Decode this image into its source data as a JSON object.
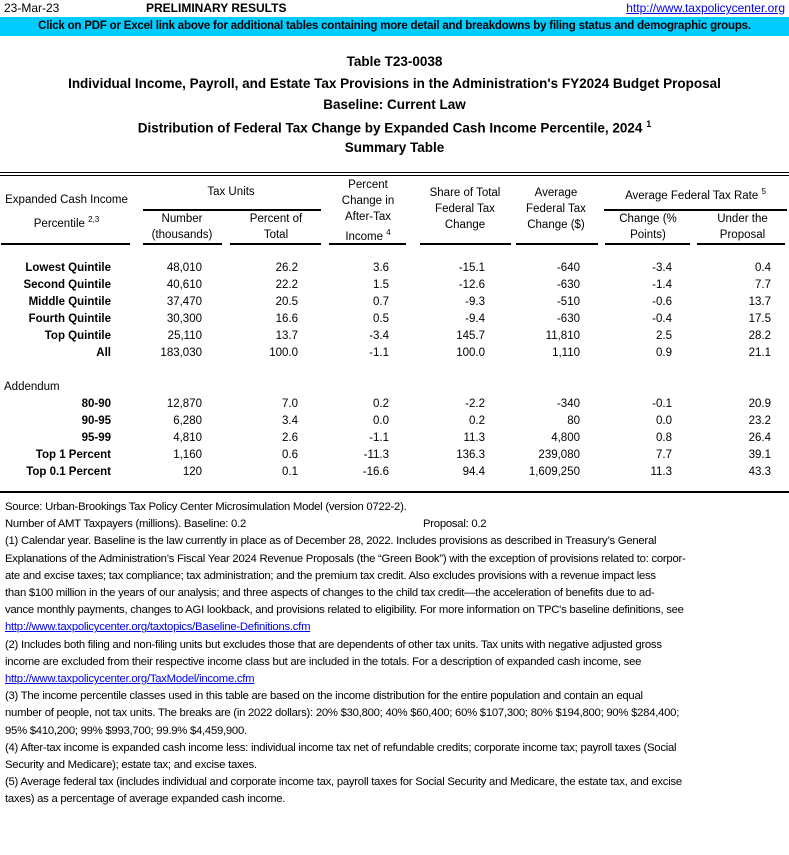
{
  "header": {
    "date": "23-Mar-23",
    "status": "PRELIMINARY RESULTS",
    "site_link": "http://www.taxpolicycenter.org",
    "banner": "Click on PDF or Excel link above for additional tables containing more detail and breakdowns by filing status and demographic groups.",
    "banner_color": "#00ccff"
  },
  "titles": {
    "table_id": "Table T23-0038",
    "line1": "Individual Income, Payroll, and Estate Tax Provisions in the Administration's FY2024 Budget Proposal",
    "line2": "Baseline: Current Law",
    "line3": "Distribution of Federal Tax Change by Expanded Cash Income Percentile, 2024",
    "line3_note": "1",
    "line4": "Summary Table"
  },
  "columns": {
    "percentile_a": "Expanded Cash Income",
    "percentile_b": "Percentile",
    "percentile_note": "2,3",
    "tax_units": "Tax Units",
    "number_a": "Number",
    "number_b": "(thousands)",
    "pct_total_a": "Percent of",
    "pct_total_b": "Total",
    "pct_change_a": "Percent",
    "pct_change_b": "Change in",
    "pct_change_c": "After-Tax",
    "pct_change_d": "Income",
    "pct_change_note": "4",
    "share_a": "Share of Total",
    "share_b": "Federal Tax",
    "share_c": "Change",
    "avg_a": "Average",
    "avg_b": "Federal Tax",
    "avg_c": "Change ($)",
    "rate": "Average Federal Tax Rate",
    "rate_note": "5",
    "rate_change_a": "Change (%",
    "rate_change_b": "Points)",
    "rate_under_a": "Under the",
    "rate_under_b": "Proposal"
  },
  "rows": [
    {
      "label": "Lowest Quintile",
      "values": [
        "48,010",
        "26.2",
        "3.6",
        "-15.1",
        "-640",
        "-3.4",
        "0.4"
      ]
    },
    {
      "label": "Second Quintile",
      "values": [
        "40,610",
        "22.2",
        "1.5",
        "-12.6",
        "-630",
        "-1.4",
        "7.7"
      ]
    },
    {
      "label": "Middle Quintile",
      "values": [
        "37,470",
        "20.5",
        "0.7",
        "-9.3",
        "-510",
        "-0.6",
        "13.7"
      ]
    },
    {
      "label": "Fourth Quintile",
      "values": [
        "30,300",
        "16.6",
        "0.5",
        "-9.4",
        "-630",
        "-0.4",
        "17.5"
      ]
    },
    {
      "label": "Top Quintile",
      "values": [
        "25,110",
        "13.7",
        "-3.4",
        "145.7",
        "11,810",
        "2.5",
        "28.2"
      ]
    },
    {
      "label": "All",
      "values": [
        "183,030",
        "100.0",
        "-1.1",
        "100.0",
        "1,110",
        "0.9",
        "21.1"
      ]
    }
  ],
  "addendum_label": "Addendum",
  "addendum_rows": [
    {
      "label": "80-90",
      "values": [
        "12,870",
        "7.0",
        "0.2",
        "-2.2",
        "-340",
        "-0.1",
        "20.9"
      ]
    },
    {
      "label": "90-95",
      "values": [
        "6,280",
        "3.4",
        "0.0",
        "0.2",
        "80",
        "0.0",
        "23.2"
      ]
    },
    {
      "label": "95-99",
      "values": [
        "4,810",
        "2.6",
        "-1.1",
        "11.3",
        "4,800",
        "0.8",
        "26.4"
      ]
    },
    {
      "label": "Top 1 Percent",
      "values": [
        "1,160",
        "0.6",
        "-11.3",
        "136.3",
        "239,080",
        "7.7",
        "39.1"
      ]
    },
    {
      "label": "Top 0.1 Percent",
      "values": [
        "120",
        "0.1",
        "-16.6",
        "94.4",
        "1,609,250",
        "11.3",
        "43.3"
      ]
    }
  ],
  "notes": {
    "source": "Source: Urban-Brookings Tax Policy Center Microsimulation Model (version 0722-2).",
    "amt": "Number of AMT Taxpayers (millions).  Baseline: 0.2",
    "amt_proposal": "Proposal: 0.2",
    "lines": [
      {
        "text": "(1) Calendar year. Baseline is the law currently in place as of December 28, 2022. Includes provisions as described in Treasury’s General",
        "link": false
      },
      {
        "text": "Explanations of the Administration’s Fiscal Year 2024 Revenue Proposals (the “Green Book”) with the exception of provisions related to: corpor-",
        "link": false
      },
      {
        "text": "ate and excise taxes; tax compliance; tax administration; and the premium tax credit. Also excludes provisions with a revenue impact less",
        "link": false
      },
      {
        "text": "than $100 million in the years of our analysis; and three aspects of changes to the child tax credit—the acceleration of benefits due to ad-",
        "link": false
      },
      {
        "text": "vance monthly payments, changes to AGI lookback, and provisions related to eligibility. For more information on TPC's baseline definitions, see",
        "link": false
      },
      {
        "text": "http://www.taxpolicycenter.org/taxtopics/Baseline-Definitions.cfm",
        "link": true
      },
      {
        "text": "(2) Includes both filing and non-filing units but excludes those that are dependents of other tax units. Tax units with negative adjusted gross",
        "link": false
      },
      {
        "text": "income are excluded from their respective income class but are included in the totals. For a description of expanded cash income, see",
        "link": false
      },
      {
        "text": "http://www.taxpolicycenter.org/TaxModel/income.cfm",
        "link": true
      },
      {
        "text": "(3) The income percentile classes used in this table are based on the income distribution for the entire population and contain an equal",
        "link": false
      },
      {
        "text": "number of people, not tax units. The breaks are (in 2022 dollars): 20% $30,800; 40% $60,400; 60% $107,300; 80% $194,800; 90% $284,400;",
        "link": false
      },
      {
        "text": "95% $410,200; 99% $993,700; 99.9% $4,459,900.",
        "link": false
      },
      {
        "text": "(4) After-tax income is expanded cash income less: individual income tax net of refundable credits; corporate income tax; payroll taxes (Social",
        "link": false
      },
      {
        "text": "Security and Medicare); estate tax; and excise taxes.",
        "link": false
      },
      {
        "text": "(5) Average federal tax (includes individual and corporate income tax, payroll taxes for Social Security and Medicare, the estate tax, and excise",
        "link": false
      },
      {
        "text": "taxes) as a percentage of average expanded cash income.",
        "link": false
      }
    ]
  }
}
